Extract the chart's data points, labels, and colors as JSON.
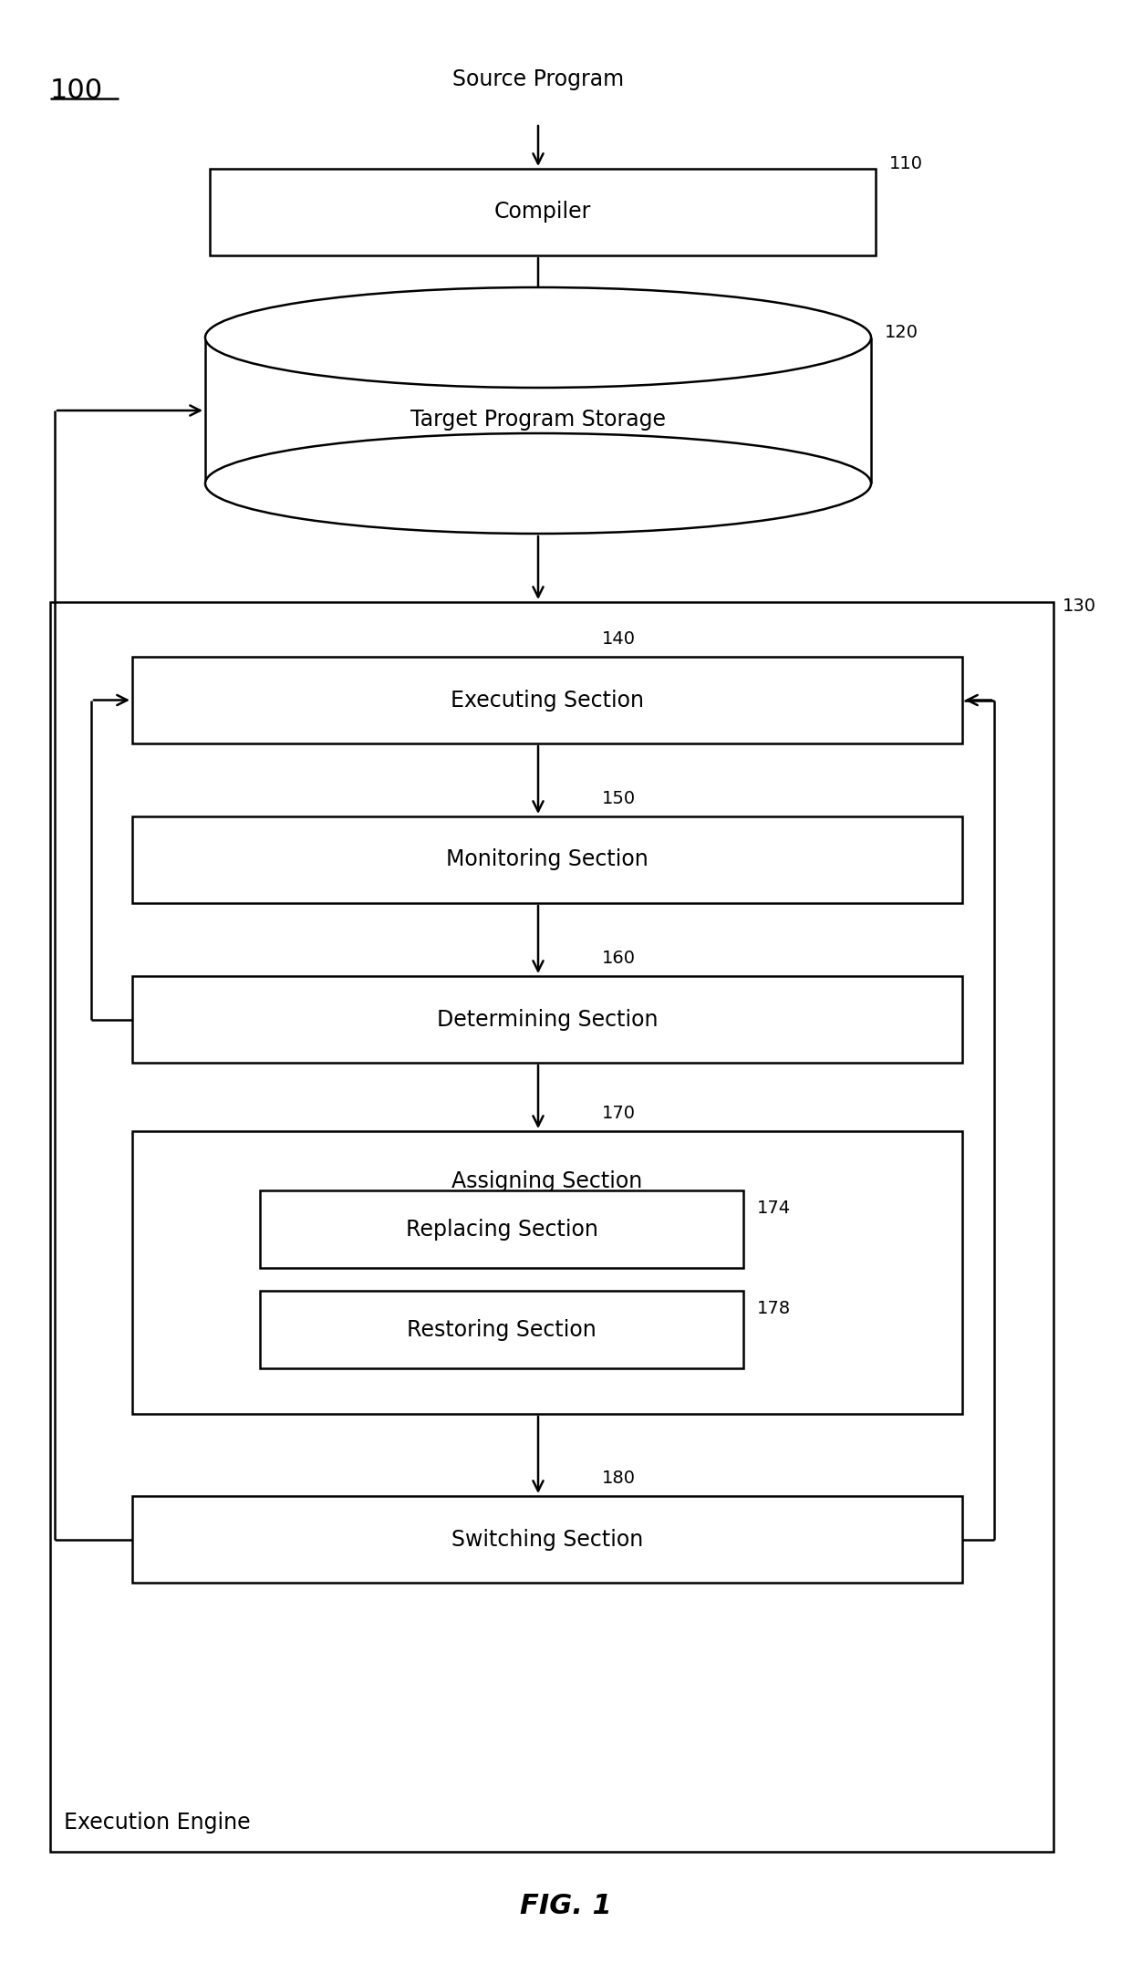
{
  "bg_color": "#ffffff",
  "fig_label": "100",
  "fig_caption": "FIG. 1",
  "source_program_label": "Source Program",
  "compiler_label": "Compiler",
  "compiler_ref": "110",
  "target_storage_label": "Target Program Storage",
  "target_storage_ref": "120",
  "execution_engine_label": "Execution Engine",
  "execution_engine_ref": "130",
  "executing_label": "Executing Section",
  "executing_ref": "140",
  "monitoring_label": "Monitoring Section",
  "monitoring_ref": "150",
  "determining_label": "Determining Section",
  "determining_ref": "160",
  "assigning_label": "Assigning Section",
  "assigning_ref": "170",
  "replacing_label": "Replacing Section",
  "replacing_ref": "174",
  "restoring_label": "Restoring Section",
  "restoring_ref": "178",
  "switching_label": "Switching Section",
  "switching_ref": "180",
  "lw": 1.8,
  "font_size_box": 17,
  "font_size_ref": 14,
  "font_size_label": 16
}
